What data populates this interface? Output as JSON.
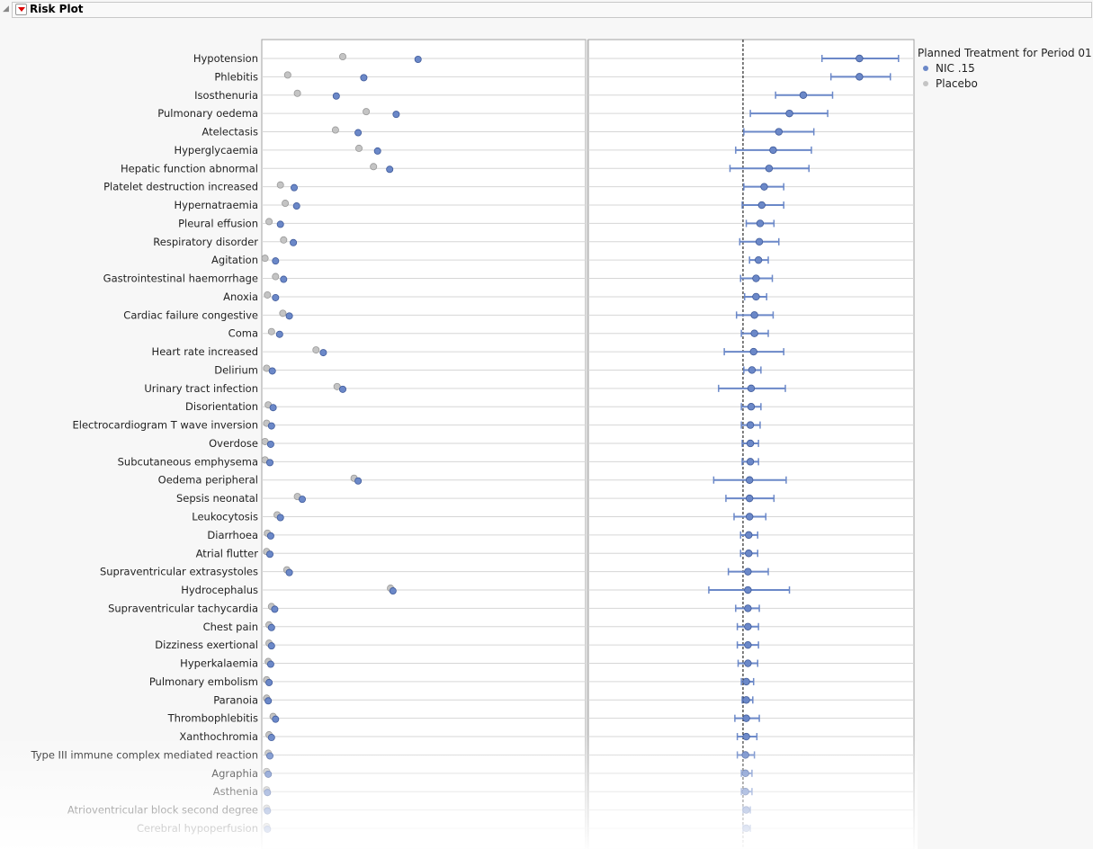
{
  "header": {
    "title": "Risk Plot"
  },
  "legend": {
    "title": "Planned Treatment for Period 01",
    "items": [
      {
        "label": "NIC .15",
        "color": "#6b88c8"
      },
      {
        "label": "Placebo",
        "color": "#c4c4c4"
      }
    ]
  },
  "chart_data": [
    {
      "type": "scatter",
      "panel": "incidence",
      "xlim": [
        0,
        40
      ],
      "grid": "horizontal",
      "legend": "right",
      "series": [
        {
          "name": "NIC .15",
          "color": "#6b88c8"
        },
        {
          "name": "Placebo",
          "color": "#c4c4c4"
        }
      ],
      "categories": [
        "Hypotension",
        "Phlebitis",
        "Isosthenuria",
        "Pulmonary oedema",
        "Atelectasis",
        "Hyperglycaemia",
        "Hepatic function abnormal",
        "Platelet destruction increased",
        "Hypernatraemia",
        "Pleural effusion",
        "Respiratory disorder",
        "Agitation",
        "Gastrointestinal haemorrhage",
        "Anoxia",
        "Cardiac failure congestive",
        "Coma",
        "Heart rate increased",
        "Delirium",
        "Urinary tract infection",
        "Disorientation",
        "Electrocardiogram T wave inversion",
        "Overdose",
        "Subcutaneous emphysema",
        "Oedema peripheral",
        "Sepsis neonatal",
        "Leukocytosis",
        "Diarrhoea",
        "Atrial flutter",
        "Supraventricular extrasystoles",
        "Hydrocephalus",
        "Supraventricular tachycardia",
        "Chest pain",
        "Dizziness exertional",
        "Hyperkalaemia",
        "Pulmonary embolism",
        "Paranoia",
        "Thrombophlebitis",
        "Xanthochromia",
        "Type III immune complex mediated reaction",
        "Agraphia",
        "Asthenia",
        "Atrioventricular block second degree",
        "Cerebral hypoperfusion"
      ],
      "nic": [
        19.3,
        12.6,
        9.2,
        16.6,
        11.9,
        14.3,
        15.8,
        4.0,
        4.3,
        2.3,
        3.9,
        1.7,
        2.7,
        1.7,
        3.4,
        2.2,
        7.6,
        1.3,
        10.0,
        1.4,
        1.2,
        1.1,
        1.0,
        11.9,
        5.0,
        2.3,
        1.1,
        1.0,
        3.4,
        16.2,
        1.6,
        1.2,
        1.2,
        1.1,
        0.9,
        0.8,
        1.7,
        1.2,
        1.0,
        0.8,
        0.7,
        0.7,
        0.7
      ],
      "placebo": [
        10.0,
        3.2,
        4.4,
        12.9,
        9.1,
        12.0,
        13.8,
        2.3,
        2.9,
        0.9,
        2.7,
        0.4,
        1.7,
        0.7,
        2.6,
        1.2,
        6.7,
        0.6,
        9.3,
        0.8,
        0.6,
        0.4,
        0.4,
        11.4,
        4.4,
        1.9,
        0.7,
        0.6,
        3.1,
        15.9,
        1.2,
        0.9,
        0.9,
        0.8,
        0.6,
        0.6,
        1.4,
        0.9,
        0.8,
        0.6,
        0.6,
        0.6,
        0.6
      ]
    },
    {
      "type": "scatter",
      "panel": "difference",
      "xlim": [
        -19,
        21
      ],
      "reference_line": 0,
      "grid": "horizontal",
      "estimate": [
        14.3,
        14.3,
        7.4,
        5.7,
        4.4,
        3.7,
        3.2,
        2.6,
        2.3,
        2.1,
        2.0,
        1.9,
        1.6,
        1.6,
        1.4,
        1.4,
        1.3,
        1.1,
        1.0,
        1.0,
        0.9,
        0.9,
        0.9,
        0.8,
        0.8,
        0.8,
        0.7,
        0.7,
        0.6,
        0.6,
        0.6,
        0.6,
        0.6,
        0.6,
        0.4,
        0.4,
        0.4,
        0.4,
        0.3,
        0.3,
        0.3,
        0.4,
        0.4
      ],
      "lower": [
        9.7,
        10.8,
        4.0,
        0.9,
        0.1,
        -0.9,
        -1.6,
        0.1,
        -0.1,
        0.4,
        -0.4,
        0.8,
        -0.3,
        0.2,
        -0.8,
        -0.2,
        -2.3,
        0.1,
        -3.0,
        -0.2,
        -0.2,
        -0.1,
        -0.1,
        -3.6,
        -2.1,
        -1.1,
        -0.3,
        -0.3,
        -1.8,
        -4.2,
        -0.9,
        -0.7,
        -0.7,
        -0.6,
        -0.2,
        -0.1,
        -1.0,
        -0.7,
        -0.7,
        -0.2,
        -0.2,
        0.0,
        0.0
      ],
      "upper": [
        19.1,
        18.1,
        11.0,
        10.4,
        8.7,
        8.4,
        8.1,
        5.0,
        5.0,
        3.8,
        4.4,
        3.1,
        3.6,
        2.9,
        3.7,
        3.1,
        5.0,
        2.2,
        5.2,
        2.2,
        2.1,
        1.9,
        1.9,
        5.3,
        3.8,
        2.8,
        1.8,
        1.8,
        3.1,
        5.7,
        2.0,
        1.9,
        1.9,
        1.8,
        1.3,
        1.2,
        2.0,
        1.7,
        1.4,
        1.1,
        1.1,
        0.9,
        0.9
      ]
    }
  ]
}
